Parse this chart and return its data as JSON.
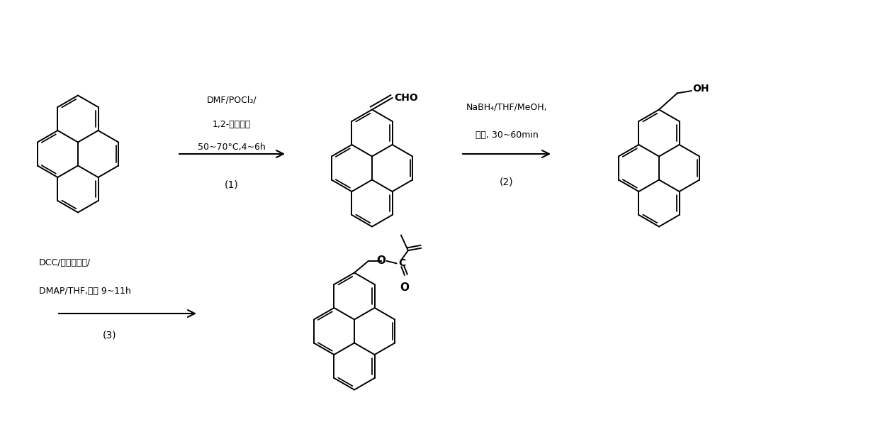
{
  "bg_color": "#ffffff",
  "reaction1_line1": "DMF/POCl₃/",
  "reaction1_line2": "1,2-二氯乙烷",
  "reaction1_line3": "50~70°C,4~6h",
  "reaction1_label": "(1)",
  "reaction2_line1": "NaBH₄/THF/MeOH,",
  "reaction2_line2": "室温, 30~60min",
  "reaction2_label": "(2)",
  "reaction3_line1": "DCC/甲基丙烯酸/",
  "reaction3_line2": "DMAP/THF,室温 9~11h",
  "reaction3_label": "(3)"
}
